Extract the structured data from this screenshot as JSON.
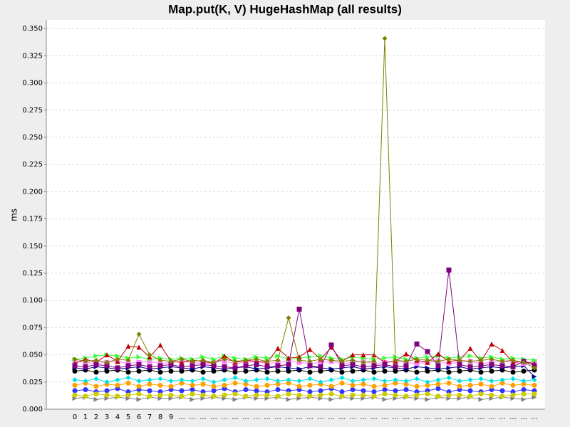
{
  "chart_data": {
    "type": "line",
    "title": "Map.put(K, V) HugeHashMap (all results)",
    "y_label": "ms",
    "grid": true,
    "categories": [
      "0",
      "1",
      "2",
      "3",
      "4",
      "5",
      "6",
      "7",
      "8",
      "9",
      "...",
      "...",
      "...",
      "...",
      "...",
      "...",
      "...",
      "...",
      "...",
      "...",
      "...",
      "...",
      "...",
      "...",
      "...",
      "...",
      "...",
      "...",
      "...",
      "...",
      "...",
      "...",
      "...",
      "...",
      "...",
      "...",
      "...",
      "...",
      "...",
      "...",
      "...",
      "...",
      "...",
      "..."
    ],
    "ylim": [
      0,
      0.358
    ],
    "yticks": [
      {
        "value": 0,
        "label": "0.000"
      },
      {
        "value": 0.025,
        "label": "0.025"
      },
      {
        "value": 0.05,
        "label": "0.050"
      },
      {
        "value": 0.075,
        "label": "0.075"
      },
      {
        "value": 0.1,
        "label": "0.100"
      },
      {
        "value": 0.125,
        "label": "0.125"
      },
      {
        "value": 0.15,
        "label": "0.150"
      },
      {
        "value": 0.175,
        "label": "0.175"
      },
      {
        "value": 0.2,
        "label": "0.200"
      },
      {
        "value": 0.225,
        "label": "0.225"
      },
      {
        "value": 0.25,
        "label": "0.250"
      },
      {
        "value": 0.275,
        "label": "0.275"
      },
      {
        "value": 0.3,
        "label": "0.300"
      },
      {
        "value": 0.325,
        "label": "0.325"
      },
      {
        "value": 0.35,
        "label": "0.350"
      }
    ],
    "series": [
      {
        "color": "#3333ff",
        "marker": "circle",
        "values": [
          0.017,
          0.018,
          0.016,
          0.017,
          0.019,
          0.016,
          0.018,
          0.017,
          0.016,
          0.018,
          0.017,
          0.018,
          0.016,
          0.017,
          0.019,
          0.016,
          0.018,
          0.017,
          0.016,
          0.018,
          0.017,
          0.018,
          0.016,
          0.017,
          0.019,
          0.016,
          0.018,
          0.017,
          0.016,
          0.018,
          0.017,
          0.018,
          0.016,
          0.017,
          0.019,
          0.016,
          0.018,
          0.017,
          0.016,
          0.018,
          0.017,
          0.016,
          0.018,
          0.017
        ]
      },
      {
        "color": "#808080",
        "marker": "triangle-right",
        "values": [
          0.01,
          0.011,
          0.009,
          0.01,
          0.011,
          0.01,
          0.009,
          0.011,
          0.01,
          0.01,
          0.011,
          0.009,
          0.01,
          0.011,
          0.01,
          0.009,
          0.011,
          0.01,
          0.01,
          0.011,
          0.009,
          0.01,
          0.011,
          0.01,
          0.009,
          0.011,
          0.01,
          0.01,
          0.011,
          0.009,
          0.01,
          0.011,
          0.01,
          0.009,
          0.011,
          0.01,
          0.01,
          0.011,
          0.009,
          0.01,
          0.011,
          0.01,
          0.009,
          0.011
        ]
      },
      {
        "color": "#cccc00",
        "marker": "circle",
        "values": [
          0.013,
          0.012,
          0.014,
          0.013,
          0.012,
          0.013,
          0.014,
          0.012,
          0.013,
          0.013,
          0.012,
          0.014,
          0.013,
          0.012,
          0.013,
          0.014,
          0.012,
          0.013,
          0.013,
          0.012,
          0.014,
          0.013,
          0.012,
          0.013,
          0.014,
          0.012,
          0.013,
          0.013,
          0.012,
          0.014,
          0.013,
          0.012,
          0.013,
          0.014,
          0.012,
          0.013,
          0.013,
          0.012,
          0.014,
          0.013,
          0.012,
          0.013,
          0.014,
          0.014
        ]
      },
      {
        "color": "#ffa000",
        "marker": "circle",
        "values": [
          0.022,
          0.024,
          0.021,
          0.023,
          0.022,
          0.024,
          0.021,
          0.023,
          0.022,
          0.021,
          0.024,
          0.022,
          0.023,
          0.021,
          0.022,
          0.024,
          0.023,
          0.021,
          0.022,
          0.023,
          0.024,
          0.021,
          0.022,
          0.023,
          0.021,
          0.024,
          0.022,
          0.023,
          0.021,
          0.022,
          0.024,
          0.023,
          0.021,
          0.022,
          0.023,
          0.024,
          0.021,
          0.022,
          0.023,
          0.021,
          0.024,
          0.022,
          0.023,
          0.022
        ]
      },
      {
        "color": "#00e0e0",
        "marker": "diamond",
        "values": [
          0.027,
          0.026,
          0.028,
          0.025,
          0.027,
          0.029,
          0.026,
          0.027,
          0.028,
          0.026,
          0.027,
          0.026,
          0.028,
          0.025,
          0.027,
          0.029,
          0.026,
          0.027,
          0.028,
          0.026,
          0.027,
          0.026,
          0.028,
          0.025,
          0.027,
          0.029,
          0.026,
          0.027,
          0.028,
          0.026,
          0.027,
          0.026,
          0.028,
          0.025,
          0.027,
          0.029,
          0.026,
          0.027,
          0.028,
          0.026,
          0.027,
          0.028,
          0.026,
          0.027
        ]
      },
      {
        "color": "#000000",
        "marker": "circle",
        "values": [
          0.035,
          0.036,
          0.034,
          0.035,
          0.036,
          0.034,
          0.035,
          0.036,
          0.034,
          0.035,
          0.035,
          0.036,
          0.034,
          0.035,
          0.036,
          0.034,
          0.035,
          0.036,
          0.034,
          0.035,
          0.035,
          0.036,
          0.034,
          0.035,
          0.036,
          0.034,
          0.035,
          0.036,
          0.034,
          0.035,
          0.035,
          0.036,
          0.034,
          0.035,
          0.036,
          0.034,
          0.035,
          0.036,
          0.034,
          0.035,
          0.036,
          0.034,
          0.035,
          0.036
        ]
      },
      {
        "color": "#000080",
        "marker": "triangle-right",
        "values": [
          0.038,
          0.037,
          0.039,
          0.038,
          0.037,
          0.038,
          0.039,
          0.037,
          0.038,
          0.039,
          0.038,
          0.037,
          0.039,
          0.038,
          0.037,
          0.038,
          0.039,
          0.037,
          0.038,
          0.039,
          0.038,
          0.037,
          0.039,
          0.038,
          0.037,
          0.038,
          0.039,
          0.037,
          0.038,
          0.039,
          0.038,
          0.037,
          0.039,
          0.038,
          0.037,
          0.038,
          0.039,
          0.037,
          0.038,
          0.039,
          0.038,
          0.039,
          0.04,
          0.03
        ]
      },
      {
        "color": "#ff80ff",
        "marker": "square",
        "values": [
          0.044,
          0.043,
          0.042,
          0.043,
          0.044,
          0.042,
          0.043,
          0.044,
          0.042,
          0.043,
          0.044,
          0.043,
          0.042,
          0.043,
          0.044,
          0.042,
          0.043,
          0.044,
          0.042,
          0.043,
          0.044,
          0.043,
          0.042,
          0.043,
          0.044,
          0.042,
          0.043,
          0.044,
          0.042,
          0.043,
          0.044,
          0.043,
          0.042,
          0.043,
          0.044,
          0.042,
          0.043,
          0.044,
          0.042,
          0.043,
          0.044,
          0.043,
          0.042,
          0.044
        ]
      },
      {
        "color": "#33ff33",
        "marker": "triangle-right",
        "values": [
          0.046,
          0.047,
          0.049,
          0.05,
          0.049,
          0.047,
          0.048,
          0.046,
          0.047,
          0.046,
          0.047,
          0.046,
          0.048,
          0.046,
          0.049,
          0.047,
          0.046,
          0.048,
          0.047,
          0.049,
          0.046,
          0.047,
          0.048,
          0.049,
          0.047,
          0.046,
          0.048,
          0.047,
          0.046,
          0.047,
          0.048,
          0.046,
          0.047,
          0.048,
          0.049,
          0.047,
          0.048,
          0.049,
          0.047,
          0.048,
          0.046,
          0.047,
          0.046,
          0.045
        ]
      },
      {
        "color": "#c00000",
        "marker": "triangle",
        "values": [
          0.042,
          0.046,
          0.043,
          0.05,
          0.044,
          0.058,
          0.057,
          0.048,
          0.059,
          0.044,
          0.043,
          0.045,
          0.044,
          0.042,
          0.049,
          0.043,
          0.045,
          0.044,
          0.043,
          0.056,
          0.047,
          0.048,
          0.055,
          0.046,
          0.057,
          0.044,
          0.05,
          0.05,
          0.05,
          0.043,
          0.044,
          0.051,
          0.045,
          0.043,
          0.051,
          0.044,
          0.045,
          0.056,
          0.044,
          0.06,
          0.054,
          0.043,
          0.044,
          0.042
        ]
      },
      {
        "color": "#800080",
        "marker": "square",
        "values": [
          0.04,
          0.039,
          0.041,
          0.04,
          0.038,
          0.04,
          0.041,
          0.039,
          0.04,
          0.041,
          0.039,
          0.04,
          0.041,
          0.04,
          0.039,
          0.038,
          0.04,
          0.041,
          0.039,
          0.04,
          0.041,
          0.092,
          0.04,
          0.039,
          0.059,
          0.04,
          0.041,
          0.039,
          0.04,
          0.041,
          0.039,
          0.04,
          0.06,
          0.053,
          0.04,
          0.128,
          0.041,
          0.039,
          0.04,
          0.041,
          0.04,
          0.039,
          0.044,
          0.04
        ]
      },
      {
        "color": "#808000",
        "marker": "diamond",
        "values": [
          0.046,
          0.044,
          0.045,
          0.043,
          0.046,
          0.045,
          0.069,
          0.05,
          0.045,
          0.044,
          0.046,
          0.044,
          0.045,
          0.043,
          0.046,
          0.044,
          0.045,
          0.046,
          0.044,
          0.045,
          0.084,
          0.045,
          0.044,
          0.046,
          0.045,
          0.044,
          0.045,
          0.043,
          0.044,
          0.341,
          0.045,
          0.044,
          0.046,
          0.045,
          0.044,
          0.046,
          0.045,
          0.044,
          0.045,
          0.046,
          0.044,
          0.045,
          0.043,
          0.038
        ]
      }
    ]
  }
}
